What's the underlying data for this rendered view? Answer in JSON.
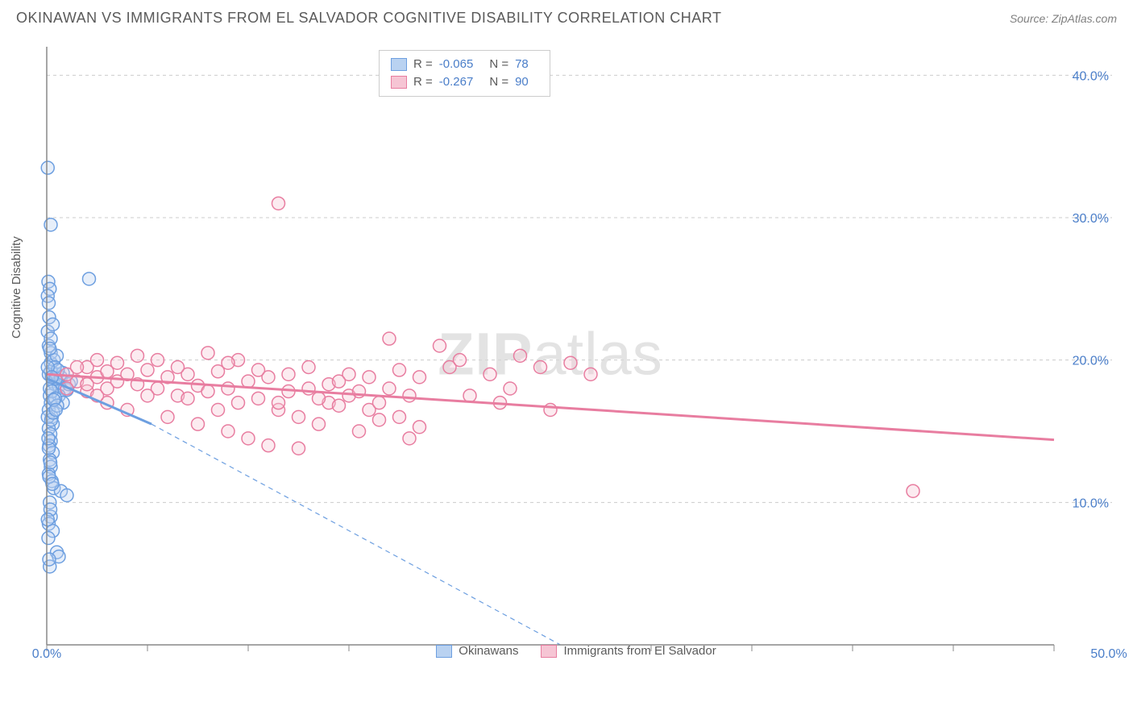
{
  "title": "OKINAWAN VS IMMIGRANTS FROM EL SALVADOR COGNITIVE DISABILITY CORRELATION CHART",
  "source_prefix": "Source: ",
  "source_name": "ZipAtlas.com",
  "y_axis_label": "Cognitive Disability",
  "watermark": {
    "bold": "ZIP",
    "light": "atlas"
  },
  "chart": {
    "type": "scatter",
    "xlim": [
      0,
      50
    ],
    "ylim": [
      0,
      42
    ],
    "x_ticks": [
      0,
      5,
      10,
      15,
      20,
      25,
      30,
      35,
      40,
      45,
      50
    ],
    "x_tick_labels": {
      "0": "0.0%",
      "50": "50.0%"
    },
    "y_ticks": [
      10,
      20,
      30,
      40
    ],
    "y_tick_labels": {
      "10": "10.0%",
      "20": "20.0%",
      "30": "30.0%",
      "40": "40.0%"
    },
    "grid_color": "#cccccc",
    "background_color": "#ffffff",
    "marker_radius": 8,
    "marker_stroke_width": 1.5,
    "marker_fill_opacity": 0.35,
    "series": [
      {
        "name": "Okinawans",
        "color": "#6d9fe0",
        "fill": "#b9d2f1",
        "R": "-0.065",
        "N": "78",
        "trend": {
          "x1": 0,
          "y1": 18.7,
          "x2": 5.2,
          "y2": 15.5,
          "dash_to_x": 25.5,
          "dash_to_y": 0
        },
        "points": [
          [
            0.05,
            33.5
          ],
          [
            0.2,
            29.5
          ],
          [
            0.08,
            25.5
          ],
          [
            0.15,
            25.0
          ],
          [
            0.05,
            24.5
          ],
          [
            0.1,
            24.0
          ],
          [
            2.1,
            25.7
          ],
          [
            0.12,
            23.0
          ],
          [
            0.05,
            22.0
          ],
          [
            0.2,
            19.8
          ],
          [
            0.2,
            19.2
          ],
          [
            0.1,
            19.0
          ],
          [
            0.3,
            18.5
          ],
          [
            0.4,
            18.3
          ],
          [
            0.5,
            19.0
          ],
          [
            0.6,
            18.2
          ],
          [
            0.7,
            18.8
          ],
          [
            0.8,
            19.1
          ],
          [
            0.9,
            18.0
          ],
          [
            1.0,
            17.9
          ],
          [
            1.1,
            18.3
          ],
          [
            0.15,
            17.5
          ],
          [
            0.2,
            17.0
          ],
          [
            0.1,
            16.5
          ],
          [
            0.25,
            16.0
          ],
          [
            0.3,
            15.5
          ],
          [
            0.1,
            15.2
          ],
          [
            0.18,
            14.8
          ],
          [
            0.2,
            14.3
          ],
          [
            0.12,
            14.0
          ],
          [
            0.3,
            13.5
          ],
          [
            0.15,
            13.0
          ],
          [
            0.2,
            12.5
          ],
          [
            0.1,
            12.0
          ],
          [
            0.25,
            11.5
          ],
          [
            0.35,
            11.0
          ],
          [
            0.7,
            10.8
          ],
          [
            1.0,
            10.5
          ],
          [
            0.15,
            10.0
          ],
          [
            0.2,
            9.0
          ],
          [
            0.1,
            8.5
          ],
          [
            0.3,
            8.0
          ],
          [
            0.5,
            6.5
          ],
          [
            0.6,
            6.2
          ],
          [
            0.15,
            5.5
          ],
          [
            0.2,
            20.5
          ],
          [
            0.35,
            20.0
          ],
          [
            0.5,
            20.3
          ],
          [
            0.1,
            21.0
          ],
          [
            0.4,
            19.5
          ],
          [
            0.6,
            17.5
          ],
          [
            0.8,
            17.0
          ],
          [
            1.2,
            18.5
          ],
          [
            0.15,
            18.0
          ],
          [
            0.25,
            17.8
          ],
          [
            0.45,
            18.7
          ],
          [
            0.55,
            19.3
          ],
          [
            0.05,
            16.0
          ],
          [
            0.1,
            13.8
          ],
          [
            0.2,
            21.5
          ],
          [
            0.3,
            22.5
          ],
          [
            0.12,
            11.8
          ],
          [
            0.18,
            9.5
          ],
          [
            0.08,
            7.5
          ],
          [
            0.22,
            15.8
          ],
          [
            0.32,
            16.3
          ],
          [
            0.42,
            17.3
          ],
          [
            0.52,
            16.8
          ],
          [
            0.05,
            19.5
          ],
          [
            0.15,
            20.8
          ],
          [
            0.25,
            18.8
          ],
          [
            0.35,
            17.2
          ],
          [
            0.45,
            16.5
          ],
          [
            0.08,
            14.5
          ],
          [
            0.18,
            12.8
          ],
          [
            0.28,
            11.3
          ],
          [
            0.05,
            8.8
          ],
          [
            0.12,
            6.0
          ]
        ]
      },
      {
        "name": "Immigrants from El Salvador",
        "color": "#e87da0",
        "fill": "#f6c5d4",
        "R": "-0.267",
        "N": "90",
        "trend": {
          "x1": 0,
          "y1": 19.0,
          "x2": 50,
          "y2": 14.4
        },
        "points": [
          [
            11.5,
            31.0
          ],
          [
            17.0,
            21.5
          ],
          [
            19.5,
            21.0
          ],
          [
            20.0,
            19.5
          ],
          [
            20.5,
            20.0
          ],
          [
            22.0,
            19.0
          ],
          [
            23.5,
            20.3
          ],
          [
            24.5,
            19.5
          ],
          [
            26.0,
            19.8
          ],
          [
            27.0,
            19.0
          ],
          [
            43.0,
            10.8
          ],
          [
            2.0,
            19.5
          ],
          [
            2.5,
            18.8
          ],
          [
            3.0,
            19.2
          ],
          [
            3.5,
            18.5
          ],
          [
            4.0,
            19.0
          ],
          [
            4.5,
            18.3
          ],
          [
            5.0,
            19.3
          ],
          [
            5.5,
            18.0
          ],
          [
            6.0,
            18.8
          ],
          [
            6.5,
            17.5
          ],
          [
            7.0,
            19.0
          ],
          [
            7.5,
            18.2
          ],
          [
            8.0,
            17.8
          ],
          [
            8.5,
            19.2
          ],
          [
            9.0,
            18.0
          ],
          [
            9.5,
            17.0
          ],
          [
            10.0,
            18.5
          ],
          [
            10.5,
            17.3
          ],
          [
            11.0,
            18.8
          ],
          [
            11.5,
            16.5
          ],
          [
            12.0,
            17.8
          ],
          [
            12.5,
            16.0
          ],
          [
            13.0,
            18.0
          ],
          [
            13.5,
            15.5
          ],
          [
            14.0,
            17.0
          ],
          [
            14.5,
            16.8
          ],
          [
            15.0,
            17.5
          ],
          [
            15.5,
            15.0
          ],
          [
            16.0,
            16.5
          ],
          [
            16.5,
            15.8
          ],
          [
            17.5,
            16.0
          ],
          [
            18.0,
            14.5
          ],
          [
            18.5,
            15.3
          ],
          [
            11.0,
            14.0
          ],
          [
            12.5,
            13.8
          ],
          [
            8.0,
            20.5
          ],
          [
            9.5,
            20.0
          ],
          [
            3.0,
            17.0
          ],
          [
            4.0,
            16.5
          ],
          [
            5.0,
            17.5
          ],
          [
            6.0,
            16.0
          ],
          [
            7.0,
            17.3
          ],
          [
            2.5,
            20.0
          ],
          [
            3.5,
            19.8
          ],
          [
            4.5,
            20.3
          ],
          [
            1.5,
            18.5
          ],
          [
            2.0,
            17.8
          ],
          [
            13.0,
            19.5
          ],
          [
            14.0,
            18.3
          ],
          [
            15.0,
            19.0
          ],
          [
            9.0,
            15.0
          ],
          [
            10.0,
            14.5
          ],
          [
            7.5,
            15.5
          ],
          [
            6.5,
            19.5
          ],
          [
            5.5,
            20.0
          ],
          [
            8.5,
            16.5
          ],
          [
            11.5,
            17.0
          ],
          [
            12.0,
            19.0
          ],
          [
            1.0,
            19.0
          ],
          [
            1.5,
            19.5
          ],
          [
            1.0,
            18.0
          ],
          [
            2.0,
            18.3
          ],
          [
            2.5,
            17.5
          ],
          [
            3.0,
            18.0
          ],
          [
            13.5,
            17.3
          ],
          [
            14.5,
            18.5
          ],
          [
            15.5,
            17.8
          ],
          [
            16.0,
            18.8
          ],
          [
            16.5,
            17.0
          ],
          [
            17.0,
            18.0
          ],
          [
            17.5,
            19.3
          ],
          [
            18.0,
            17.5
          ],
          [
            18.5,
            18.8
          ],
          [
            21.0,
            17.5
          ],
          [
            22.5,
            17.0
          ],
          [
            25.0,
            16.5
          ],
          [
            23.0,
            18.0
          ],
          [
            10.5,
            19.3
          ],
          [
            9.0,
            19.8
          ]
        ]
      }
    ]
  },
  "legend_bottom": [
    {
      "label": "Okinawans",
      "fill": "#b9d2f1",
      "stroke": "#6d9fe0"
    },
    {
      "label": "Immigrants from El Salvador",
      "fill": "#f6c5d4",
      "stroke": "#e87da0"
    }
  ]
}
